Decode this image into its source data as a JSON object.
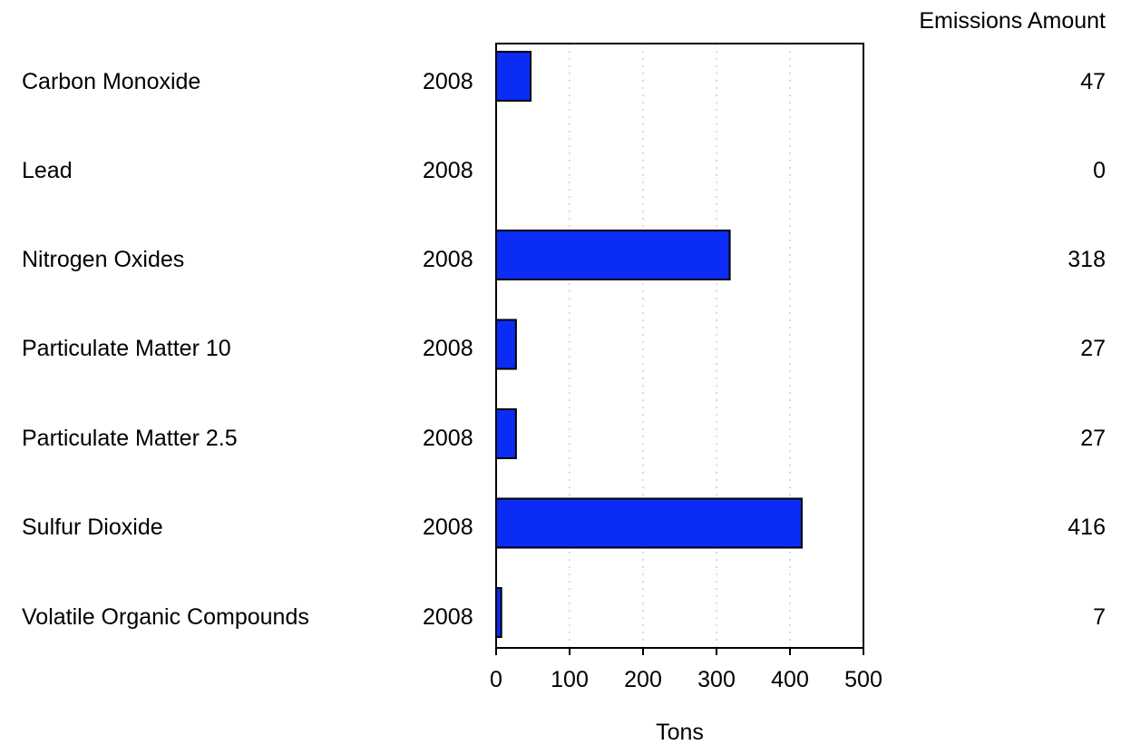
{
  "chart_data": {
    "type": "bar",
    "orientation": "horizontal",
    "categories": [
      "Carbon Monoxide",
      "Lead",
      "Nitrogen Oxides",
      "Particulate Matter 10",
      "Particulate Matter 2.5",
      "Sulfur Dioxide",
      "Volatile Organic Compounds"
    ],
    "year_labels": [
      "2008",
      "2008",
      "2008",
      "2008",
      "2008",
      "2008",
      "2008"
    ],
    "values": [
      47,
      0,
      318,
      27,
      27,
      416,
      7
    ],
    "value_labels": [
      "47",
      "0",
      "318",
      "27",
      "27",
      "416",
      "7"
    ],
    "value_column_header": "Emissions Amount",
    "xlabel": "Tons",
    "xlim": [
      0,
      500
    ],
    "xticks": [
      0,
      100,
      200,
      300,
      400,
      500
    ],
    "grid": "vertical dotted",
    "colors": {
      "bar": "#0a2cf5",
      "bar_outline": "#000000",
      "grid": "#cfcfcf"
    }
  }
}
